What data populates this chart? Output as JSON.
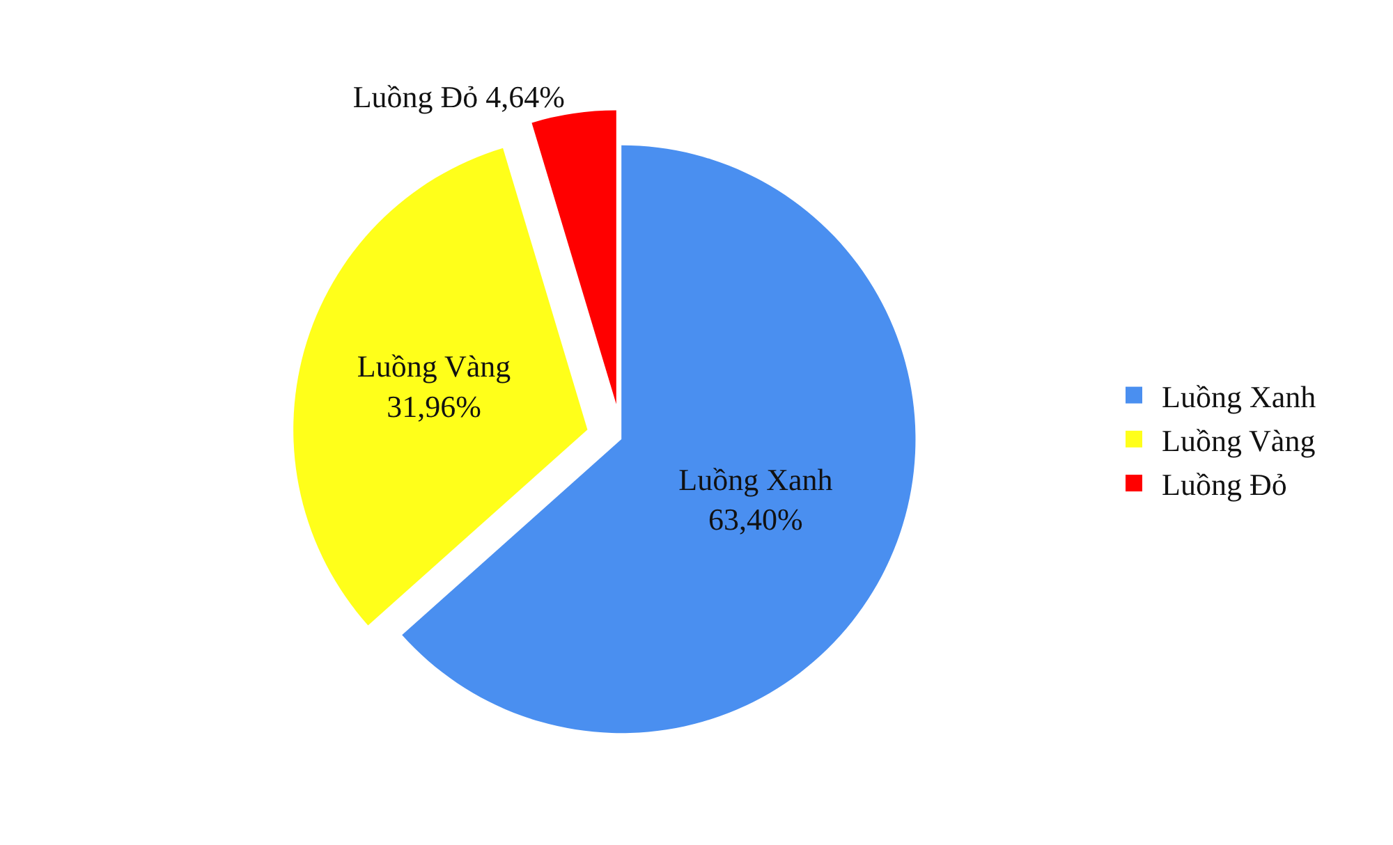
{
  "chart_data": {
    "type": "pie",
    "categories": [
      "Luồng Xanh",
      "Luồng Vàng",
      "Luồng Đỏ"
    ],
    "values": [
      63.4,
      31.96,
      4.64
    ],
    "colors": [
      "#4a8ff0",
      "#ffff1a",
      "#ff0000"
    ],
    "value_labels": [
      "63,40%",
      "31,96%",
      "4,64%"
    ],
    "legend": "right"
  }
}
